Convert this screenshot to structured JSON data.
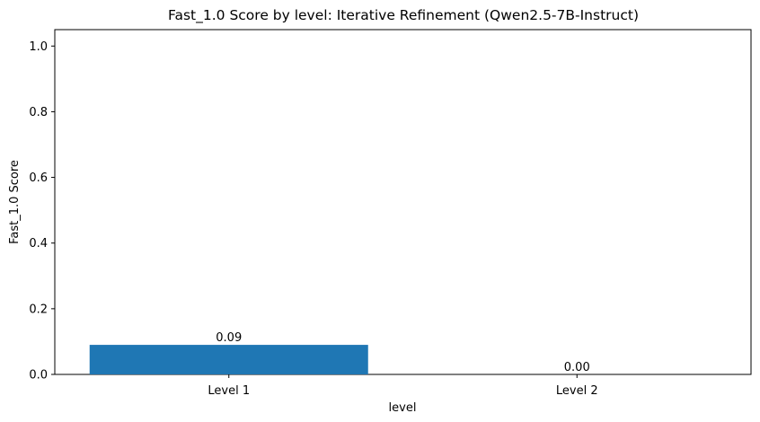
{
  "chart_data": {
    "type": "bar",
    "title": "Fast_1.0 Score by level: Iterative Refinement (Qwen2.5-7B-Instruct)",
    "xlabel": "level",
    "ylabel": "Fast_1.0 Score",
    "categories": [
      "Level 1",
      "Level 2"
    ],
    "values": [
      0.09,
      0.0
    ],
    "value_labels": [
      "0.09",
      "0.00"
    ],
    "ylim": [
      0,
      1.05
    ],
    "yticks": [
      0.0,
      0.2,
      0.4,
      0.6,
      0.8,
      1.0
    ],
    "ytick_labels": [
      "0.0",
      "0.2",
      "0.4",
      "0.6",
      "0.8",
      "1.0"
    ],
    "bar_color": "#1f77b4",
    "grid": false,
    "legend": "none"
  }
}
